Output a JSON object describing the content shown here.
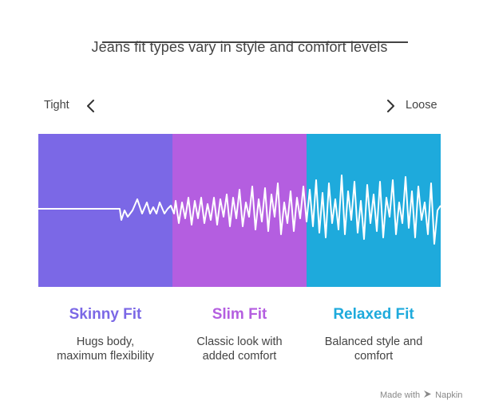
{
  "title": "Jeans fit types vary in style and comfort levels",
  "scale": {
    "left_label": "Tight",
    "right_label": "Loose"
  },
  "fits": [
    {
      "name": "Skinny Fit",
      "description_line1": "Hugs body,",
      "description_line2": "maximum flexibility",
      "color": "#7B68E6"
    },
    {
      "name": "Slim Fit",
      "description_line1": "Classic look with",
      "description_line2": "added comfort",
      "color": "#B45EE0"
    },
    {
      "name": "Relaxed Fit",
      "description_line1": "Balanced style and",
      "description_line2": "comfort",
      "color": "#1EAADC"
    }
  ],
  "footer": {
    "text": "Made with",
    "brand": "Napkin"
  },
  "icons": {
    "left": "chevron-left-icon",
    "right": "chevron-right-icon",
    "footer": "napkin-logo-icon"
  }
}
